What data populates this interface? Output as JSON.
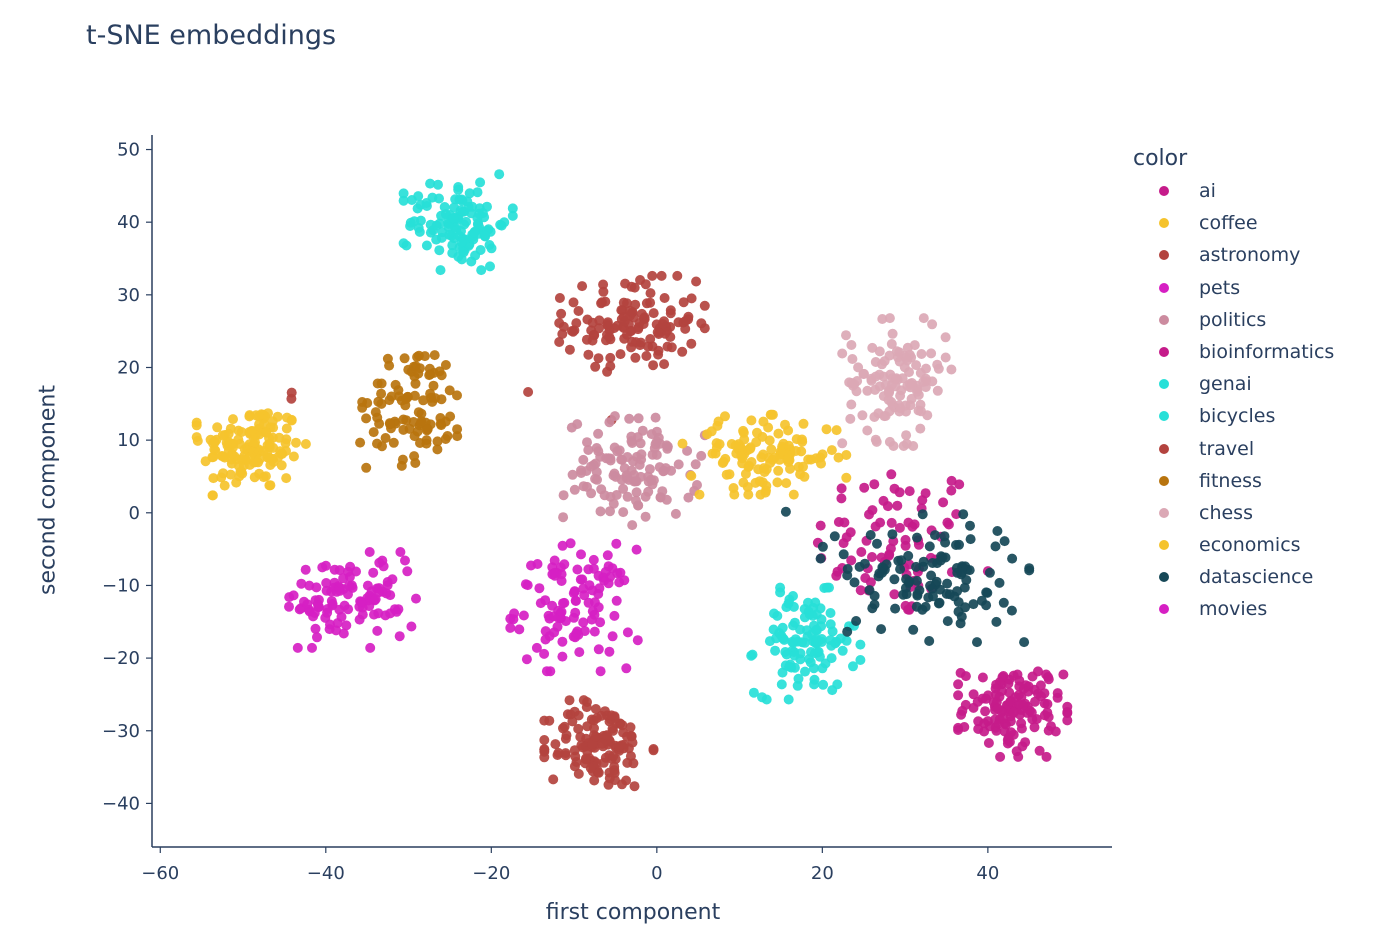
{
  "chart_data": {
    "type": "scatter",
    "title": "t-SNE embeddings",
    "xlabel": "first component",
    "ylabel": "second component",
    "xlim": [
      -61,
      55
    ],
    "ylim": [
      -46,
      52
    ],
    "xticks": [
      -60,
      -40,
      -20,
      0,
      20,
      40
    ],
    "yticks": [
      -40,
      -30,
      -20,
      -10,
      0,
      10,
      20,
      30,
      40,
      50
    ],
    "x_tick_labels": [
      "−60",
      "−40",
      "−20",
      "0",
      "20",
      "40"
    ],
    "y_tick_labels": [
      "−40",
      "−30",
      "−20",
      "−10",
      "0",
      "10",
      "20",
      "30",
      "40",
      "50"
    ],
    "grid": false,
    "legend_title": "color",
    "legend_position": "right",
    "series": [
      {
        "name": "ai",
        "color": "#c51b8a",
        "clusters": [
          {
            "cx": 29,
            "cy": -4,
            "sx": 5,
            "sy": 5.5,
            "n": 80
          }
        ]
      },
      {
        "name": "coffee",
        "color": "#f5c32c",
        "clusters": [
          {
            "cx": -49,
            "cy": 9,
            "sx": 3,
            "sy": 3,
            "n": 140
          }
        ]
      },
      {
        "name": "astronomy",
        "color": "#b3433e",
        "clusters": [
          {
            "cx": -3,
            "cy": 26,
            "sx": 4,
            "sy": 3,
            "n": 130
          },
          {
            "cx": -44,
            "cy": 16,
            "sx": 0.6,
            "sy": 0.5,
            "n": 2
          },
          {
            "cx": -16,
            "cy": 17,
            "sx": 0.3,
            "sy": 0.3,
            "n": 1
          },
          {
            "cx": -6,
            "cy": 13,
            "sx": 0.3,
            "sy": 0.3,
            "n": 1
          }
        ]
      },
      {
        "name": "pets",
        "color": "#d61fc3",
        "clusters": [
          {
            "cx": -10,
            "cy": -13,
            "sx": 3.5,
            "sy": 4,
            "n": 110
          }
        ]
      },
      {
        "name": "politics",
        "color": "#cc8b9f",
        "clusters": [
          {
            "cx": -3,
            "cy": 6,
            "sx": 4,
            "sy": 3.5,
            "n": 120
          }
        ]
      },
      {
        "name": "bioinformatics",
        "color": "#c51b8a",
        "clusters": [
          {
            "cx": 43,
            "cy": -27,
            "sx": 3,
            "sy": 3,
            "n": 130
          }
        ]
      },
      {
        "name": "genai",
        "color": "#27e0d8",
        "clusters": [
          {
            "cx": 18,
            "cy": -18,
            "sx": 3,
            "sy": 3.5,
            "n": 110
          }
        ]
      },
      {
        "name": "bicycles",
        "color": "#27e0d8",
        "clusters": [
          {
            "cx": -24,
            "cy": 40,
            "sx": 3,
            "sy": 3,
            "n": 120
          }
        ]
      },
      {
        "name": "travel",
        "color": "#b3433e",
        "clusters": [
          {
            "cx": -7,
            "cy": -32,
            "sx": 3,
            "sy": 3,
            "n": 130
          }
        ]
      },
      {
        "name": "fitness",
        "color": "#b8740e",
        "clusters": [
          {
            "cx": -29,
            "cy": 15,
            "sx": 3,
            "sy": 4,
            "n": 100
          },
          {
            "cx": -36,
            "cy": 10,
            "sx": 0.3,
            "sy": 0.3,
            "n": 1
          }
        ]
      },
      {
        "name": "chess",
        "color": "#dba8b5",
        "clusters": [
          {
            "cx": 29,
            "cy": 18,
            "sx": 3,
            "sy": 4,
            "n": 120
          }
        ]
      },
      {
        "name": "economics",
        "color": "#f5c32c",
        "clusters": [
          {
            "cx": 13,
            "cy": 8,
            "sx": 4.5,
            "sy": 2.5,
            "n": 120
          }
        ]
      },
      {
        "name": "datascience",
        "color": "#164857",
        "clusters": [
          {
            "cx": 34,
            "cy": -9,
            "sx": 5,
            "sy": 4,
            "n": 110
          },
          {
            "cx": 20,
            "cy": -4,
            "sx": 3,
            "sy": 3,
            "n": 8
          }
        ]
      },
      {
        "name": "movies",
        "color": "#d61fc3",
        "clusters": [
          {
            "cx": -37,
            "cy": -12,
            "sx": 4,
            "sy": 3,
            "n": 110
          }
        ]
      }
    ]
  }
}
